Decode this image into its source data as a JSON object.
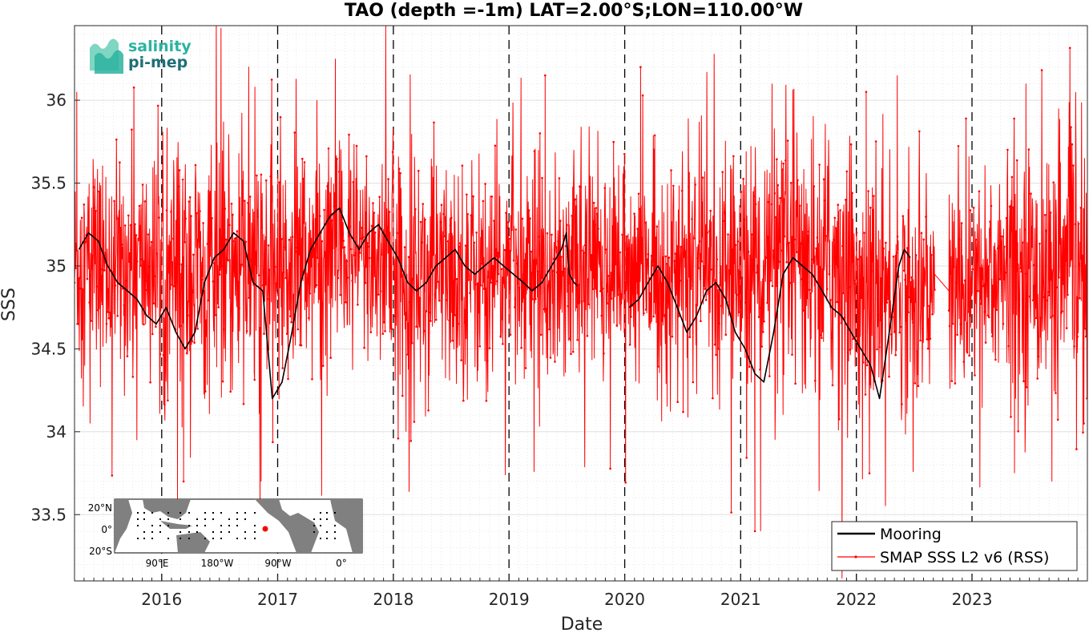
{
  "chart_data": {
    "type": "line",
    "title": "TAO (depth =-1m) LAT=2.00°S;LON=110.00°W",
    "xlabel": "Date",
    "ylabel": "SSS",
    "xlim": [
      "2015-04-01",
      "2023-12-31"
    ],
    "ylim": [
      33.1,
      36.45
    ],
    "x_ticks": [
      "2016",
      "2017",
      "2018",
      "2019",
      "2020",
      "2021",
      "2022",
      "2023"
    ],
    "y_ticks": [
      33.5,
      34,
      34.5,
      35,
      35.5,
      36
    ],
    "y_tick_labels": [
      "33.5",
      "34",
      "34.5",
      "35",
      "35.5",
      "36"
    ],
    "grid": true,
    "minor_grid": true,
    "year_boundary_lines": [
      "2016-01-01",
      "2017-01-01",
      "2018-01-01",
      "2019-01-01",
      "2020-01-01",
      "2021-01-01",
      "2022-01-01",
      "2023-01-01"
    ],
    "legend_position": "bottom-right",
    "series": [
      {
        "name": "Mooring",
        "color": "#000000",
        "style": "line",
        "points": [
          [
            "2015-04-15",
            35.1
          ],
          [
            "2015-05-15",
            35.2
          ],
          [
            "2015-06-15",
            35.15
          ],
          [
            "2015-07-15",
            35.0
          ],
          [
            "2015-08-15",
            34.9
          ],
          [
            "2015-09-15",
            34.85
          ],
          [
            "2015-10-15",
            34.8
          ],
          [
            "2015-11-15",
            34.7
          ],
          [
            "2015-12-15",
            34.65
          ],
          [
            "2016-01-15",
            34.75
          ],
          [
            "2016-02-15",
            34.6
          ],
          [
            "2016-03-15",
            34.5
          ],
          [
            "2016-04-15",
            34.6
          ],
          [
            "2016-05-15",
            34.9
          ],
          [
            "2016-06-15",
            35.05
          ],
          [
            "2016-07-15",
            35.1
          ],
          [
            "2016-08-15",
            35.2
          ],
          [
            "2016-09-15",
            35.15
          ],
          [
            "2016-10-15",
            34.9
          ],
          [
            "2016-11-15",
            34.85
          ],
          [
            "2016-12-15",
            34.2
          ],
          [
            "2017-01-15",
            34.3
          ],
          [
            "2017-02-15",
            34.6
          ],
          [
            "2017-03-15",
            34.9
          ],
          [
            "2017-04-15",
            35.1
          ],
          [
            "2017-05-15",
            35.2
          ],
          [
            "2017-06-15",
            35.3
          ],
          [
            "2017-07-15",
            35.35
          ],
          [
            "2017-08-15",
            35.2
          ],
          [
            "2017-09-15",
            35.1
          ],
          [
            "2017-10-15",
            35.2
          ],
          [
            "2017-11-15",
            35.25
          ],
          [
            "2017-12-15",
            35.15
          ],
          [
            "2018-01-15",
            35.05
          ],
          [
            "2018-02-15",
            34.9
          ],
          [
            "2018-03-15",
            34.85
          ],
          [
            "2018-04-15",
            34.9
          ],
          [
            "2018-05-15",
            35.0
          ],
          [
            "2018-06-15",
            35.05
          ],
          [
            "2018-07-15",
            35.1
          ],
          [
            "2018-08-15",
            35.0
          ],
          [
            "2018-09-15",
            34.95
          ],
          [
            "2018-10-15",
            35.0
          ],
          [
            "2018-11-15",
            35.05
          ],
          [
            "2018-12-15",
            35.0
          ],
          [
            "2019-01-15",
            34.95
          ],
          [
            "2019-02-15",
            34.9
          ],
          [
            "2019-03-15",
            34.85
          ],
          [
            "2019-04-15",
            34.9
          ],
          [
            "2019-05-15",
            35.0
          ],
          [
            "2019-06-15",
            35.1
          ],
          [
            "2019-07-01",
            35.2
          ],
          [
            "2019-07-10",
            34.95
          ],
          [
            "2019-07-25",
            34.9
          ],
          [
            "2019-08-05",
            34.88
          ],
          [
            "2020-01-15",
            34.75
          ],
          [
            "2020-02-15",
            34.8
          ],
          [
            "2020-03-15",
            34.9
          ],
          [
            "2020-04-15",
            35.0
          ],
          [
            "2020-05-15",
            34.9
          ],
          [
            "2020-06-15",
            34.75
          ],
          [
            "2020-07-15",
            34.6
          ],
          [
            "2020-08-15",
            34.7
          ],
          [
            "2020-09-15",
            34.85
          ],
          [
            "2020-10-15",
            34.9
          ],
          [
            "2020-11-15",
            34.8
          ],
          [
            "2020-12-15",
            34.6
          ],
          [
            "2021-01-15",
            34.5
          ],
          [
            "2021-02-15",
            34.35
          ],
          [
            "2021-03-15",
            34.3
          ],
          [
            "2021-04-15",
            34.6
          ],
          [
            "2021-05-15",
            34.95
          ],
          [
            "2021-06-15",
            35.05
          ],
          [
            "2021-07-15",
            35.0
          ],
          [
            "2021-08-15",
            34.95
          ],
          [
            "2021-09-15",
            34.85
          ],
          [
            "2021-10-15",
            34.75
          ],
          [
            "2021-11-15",
            34.7
          ],
          [
            "2021-12-15",
            34.6
          ],
          [
            "2022-01-15",
            34.5
          ],
          [
            "2022-02-15",
            34.4
          ],
          [
            "2022-03-15",
            34.2
          ],
          [
            "2022-04-15",
            34.6
          ],
          [
            "2022-05-15",
            35.0
          ],
          [
            "2022-06-01",
            35.1
          ],
          [
            "2022-06-20",
            35.05
          ]
        ]
      },
      {
        "name": "SMAP SSS L2 v6 (RSS)",
        "color": "#ff0000",
        "style": "line-dots",
        "data_ranges": [
          [
            "2015-04-01",
            "2022-09-05"
          ],
          [
            "2022-10-20",
            "2023-12-31"
          ]
        ],
        "anomalous_points": [
          [
            "2015-04-08",
            36.05
          ],
          [
            "2015-05-20",
            34.05
          ],
          [
            "2016-02-20",
            33.55
          ],
          [
            "2016-03-10",
            33.7
          ],
          [
            "2016-11-10",
            33.7
          ],
          [
            "2017-07-02",
            36.25
          ],
          [
            "2018-02-10",
            34.0
          ],
          [
            "2019-04-25",
            36.15
          ],
          [
            "2019-07-10",
            35.25
          ],
          [
            "2020-02-20",
            36.2
          ],
          [
            "2021-01-20",
            33.9
          ],
          [
            "2021-02-15",
            33.4
          ],
          [
            "2021-03-05",
            33.4
          ],
          [
            "2021-04-10",
            36.1
          ],
          [
            "2022-02-01",
            36.05
          ],
          [
            "2022-05-10",
            36.15
          ],
          [
            "2022-09-05",
            34.95
          ],
          [
            "2022-10-20",
            34.85
          ],
          [
            "2023-05-15",
            33.75
          ],
          [
            "2023-06-20",
            36.1
          ],
          [
            "2023-09-10",
            33.7
          ],
          [
            "2023-12-20",
            34.05
          ]
        ],
        "statistics_by_year": {
          "2015": {
            "mean": 35.0,
            "spread": 0.38
          },
          "2016": {
            "mean": 34.95,
            "spread": 0.45
          },
          "2017": {
            "mean": 35.05,
            "spread": 0.42
          },
          "2018": {
            "mean": 34.95,
            "spread": 0.4
          },
          "2019": {
            "mean": 35.0,
            "spread": 0.38
          },
          "2020": {
            "mean": 34.95,
            "spread": 0.38
          },
          "2021": {
            "mean": 35.0,
            "spread": 0.45
          },
          "2022": {
            "mean": 34.85,
            "spread": 0.4
          },
          "2023": {
            "mean": 34.95,
            "spread": 0.42
          }
        }
      }
    ]
  },
  "logo": {
    "line1": "salinity",
    "line2": "pi-mep",
    "colors": [
      "#2bb3a0",
      "#1f6e78",
      "#7fd6c2"
    ]
  },
  "inset_map": {
    "y_labels": [
      "20°N",
      "0°",
      "20°S"
    ],
    "x_labels": [
      "90°E",
      "180°W",
      "90°W",
      "0°"
    ],
    "land_color": "#808080",
    "ocean_color": "#ffffff",
    "marker_color": "#ff0000",
    "marker_lat": -2.0,
    "marker_lon": -110.0
  },
  "legend": {
    "items": [
      {
        "label": "Mooring",
        "color": "#000000"
      },
      {
        "label": "SMAP SSS L2 v6 (RSS)",
        "color": "#ff0000"
      }
    ]
  }
}
